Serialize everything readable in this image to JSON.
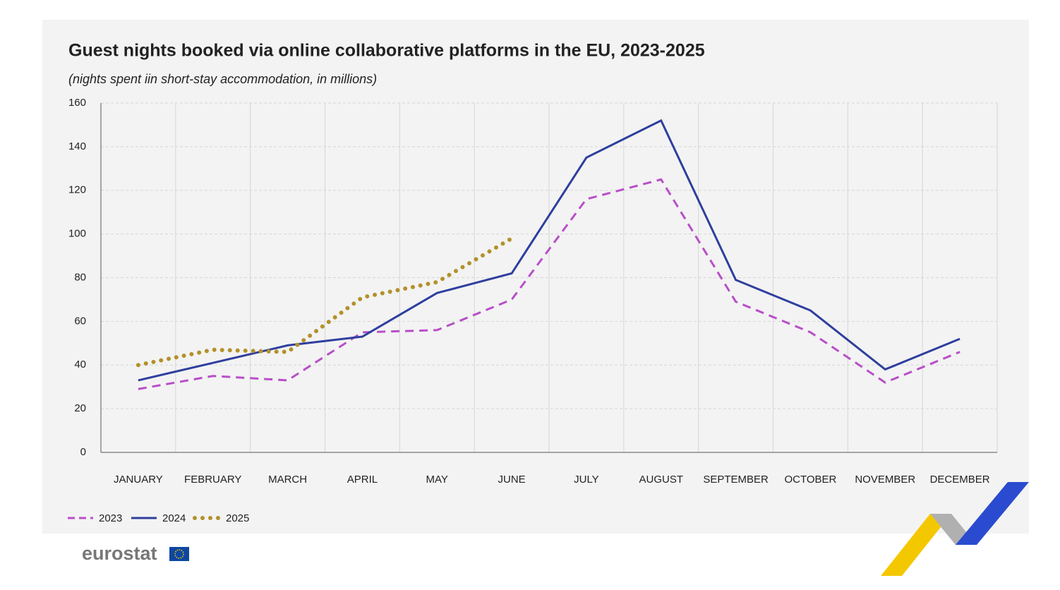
{
  "chart_data": {
    "type": "line",
    "title": "Guest nights booked via online collaborative platforms in the EU, 2023-2025",
    "subtitle": "(nights spent iin short-stay accommodation, in millions)",
    "categories": [
      "JANUARY",
      "FEBRUARY",
      "MARCH",
      "APRIL",
      "MAY",
      "JUNE",
      "JULY",
      "AUGUST",
      "SEPTEMBER",
      "OCTOBER",
      "NOVEMBER",
      "DECEMBER"
    ],
    "series": [
      {
        "name": "2023",
        "color": "#b84fc8",
        "style": "dashed",
        "values": [
          29,
          35,
          33,
          55,
          56,
          70,
          116,
          125,
          69,
          55,
          32,
          46
        ]
      },
      {
        "name": "2024",
        "color": "#2e3f9e",
        "style": "solid",
        "values": [
          33,
          41,
          49,
          53,
          73,
          82,
          135,
          152,
          79,
          65,
          38,
          52
        ]
      },
      {
        "name": "2025",
        "color": "#b39129",
        "style": "dotted",
        "values": [
          40,
          47,
          46,
          71,
          78,
          98,
          null,
          null,
          null,
          null,
          null,
          null
        ]
      }
    ],
    "ylim": [
      0,
      160
    ],
    "yticks": [
      0,
      20,
      40,
      60,
      80,
      100,
      120,
      140,
      160
    ],
    "grid": true,
    "legend": "bottom-left"
  },
  "logo": "eurostat"
}
